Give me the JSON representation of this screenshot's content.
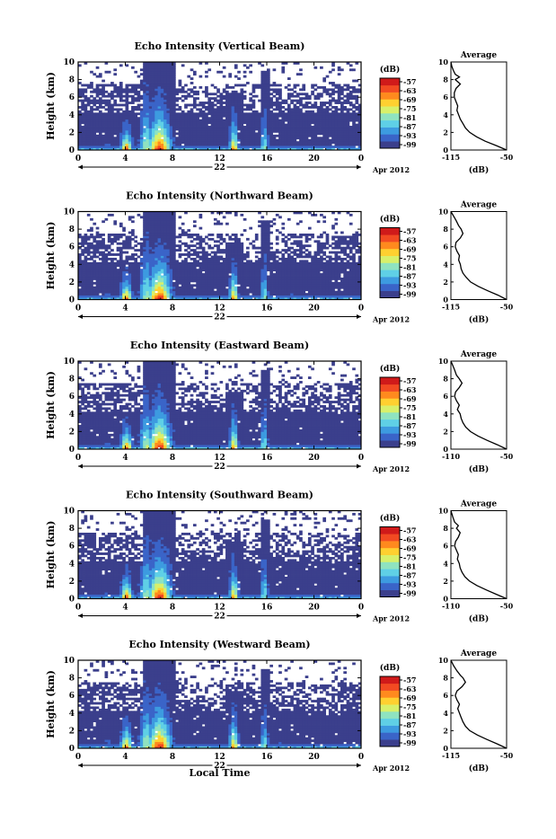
{
  "colors": {
    "background": "#ffffff",
    "colormap": [
      "#3b3f8c",
      "#3a64c8",
      "#3d9be0",
      "#5fd0e6",
      "#8fe3c0",
      "#d8f06a",
      "#ffd030",
      "#ff8a1e",
      "#f24a22",
      "#d01a1a"
    ],
    "low": "#3b3f8c"
  },
  "shared": {
    "y_label": "Height (km)",
    "x_label": "Local Time",
    "date_day": "22",
    "date_suffix": "Apr 2012",
    "cbar_unit": "(dB)",
    "avg_title": "Average",
    "avg_xlabel": "(dB)",
    "x_ticks": [
      "0",
      "4",
      "8",
      "12",
      "16",
      "20",
      "0"
    ],
    "y_ticks": [
      "0",
      "2",
      "4",
      "6",
      "8",
      "10"
    ]
  },
  "panels": [
    {
      "title": "Echo Intensity (Vertical Beam)",
      "cbar_ticks": [
        "-57",
        "-63",
        "-69",
        "-75",
        "-81",
        "-87",
        "-93",
        "-99"
      ],
      "avg_xticks": [
        "-115",
        "-50"
      ]
    },
    {
      "title": "Echo Intensity (Northward Beam)",
      "cbar_ticks": [
        "-57",
        "-63",
        "-69",
        "-75",
        "-81",
        "-87",
        "-93",
        "-99"
      ],
      "avg_xticks": [
        "-115",
        "-50"
      ]
    },
    {
      "title": "Echo Intensity (Eastward Beam)",
      "cbar_ticks": [
        "-57",
        "-63",
        "-69",
        "-75",
        "-81",
        "-87",
        "-93",
        "-99"
      ],
      "avg_xticks": [
        "-110",
        "-50"
      ]
    },
    {
      "title": "Echo Intensity (Southward Beam)",
      "cbar_ticks": [
        "-57",
        "-63",
        "-69",
        "-75",
        "-81",
        "-87",
        "-93",
        "-99"
      ],
      "avg_xticks": [
        "-110",
        "-50"
      ]
    },
    {
      "title": "Echo Intensity (Westward Beam)",
      "cbar_ticks": [
        "-57",
        "-63",
        "-69",
        "-75",
        "-81",
        "-87",
        "-93",
        "-99"
      ],
      "avg_xticks": [
        "-115",
        "-50"
      ]
    }
  ],
  "chart_data": {
    "type": "heatmap",
    "title": "Echo Intensity",
    "xlabel": "Local Time",
    "ylabel": "Height (km)",
    "xlim": [
      0,
      24
    ],
    "ylim": [
      0,
      10
    ],
    "colorbar": {
      "label": "(dB)",
      "range": [
        -99,
        -57
      ],
      "ticks": [
        -57,
        -63,
        -69,
        -75,
        -81,
        -87,
        -93,
        -99
      ]
    },
    "beams": [
      "Vertical",
      "Northward",
      "Eastward",
      "Southward",
      "Westward"
    ],
    "features": [
      {
        "name": "echo top",
        "x_start": 0,
        "x_end": 24,
        "height_km": 4.5
      },
      {
        "name": "strong echo",
        "x_center": 4.1,
        "top_km": 4
      },
      {
        "name": "strong echo",
        "x_center": 6.9,
        "top_km": 10
      },
      {
        "name": "strong echo",
        "x_center": 13.2,
        "top_km": 6.5
      },
      {
        "name": "strong echo",
        "x_center": 15.8,
        "top_km": 9
      }
    ],
    "average_profiles": [
      {
        "beam": "Vertical",
        "xlim": [
          -115,
          -50
        ],
        "points": [
          [
            -50,
            0
          ],
          [
            -62,
            0.5
          ],
          [
            -75,
            1
          ],
          [
            -85,
            1.5
          ],
          [
            -93,
            2
          ],
          [
            -98,
            2.5
          ],
          [
            -101,
            3
          ],
          [
            -104,
            3.5
          ],
          [
            -106,
            4
          ],
          [
            -108,
            4.5
          ],
          [
            -107,
            5
          ],
          [
            -109,
            5.5
          ],
          [
            -111,
            6
          ],
          [
            -111,
            6.5
          ],
          [
            -109,
            7
          ],
          [
            -104,
            7.5
          ],
          [
            -110,
            8
          ],
          [
            -105,
            8.3
          ],
          [
            -110,
            8.6
          ],
          [
            -112,
            9
          ],
          [
            -114,
            9.5
          ],
          [
            -115,
            10
          ]
        ]
      },
      {
        "beam": "Northward",
        "xlim": [
          -115,
          -50
        ],
        "points": [
          [
            -50,
            0
          ],
          [
            -60,
            0.5
          ],
          [
            -72,
            1
          ],
          [
            -83,
            1.5
          ],
          [
            -92,
            2
          ],
          [
            -97,
            2.5
          ],
          [
            -101,
            3
          ],
          [
            -103,
            3.5
          ],
          [
            -104,
            4
          ],
          [
            -106,
            4.5
          ],
          [
            -105,
            5
          ],
          [
            -108,
            5.5
          ],
          [
            -110,
            6
          ],
          [
            -109,
            6.5
          ],
          [
            -104,
            7
          ],
          [
            -101,
            7.5
          ],
          [
            -103,
            8
          ],
          [
            -106,
            8.4
          ],
          [
            -109,
            9
          ],
          [
            -112,
            9.5
          ],
          [
            -115,
            10
          ]
        ]
      },
      {
        "beam": "Eastward",
        "xlim": [
          -110,
          -50
        ],
        "points": [
          [
            -50,
            0
          ],
          [
            -60,
            0.5
          ],
          [
            -71,
            1
          ],
          [
            -81,
            1.5
          ],
          [
            -89,
            2
          ],
          [
            -94,
            2.5
          ],
          [
            -97,
            3
          ],
          [
            -99,
            3.5
          ],
          [
            -100,
            4
          ],
          [
            -103,
            4.5
          ],
          [
            -101,
            5
          ],
          [
            -104,
            5.5
          ],
          [
            -106,
            6
          ],
          [
            -105,
            6.5
          ],
          [
            -101,
            7
          ],
          [
            -98,
            7.5
          ],
          [
            -101,
            8
          ],
          [
            -104,
            8.4
          ],
          [
            -106,
            9
          ],
          [
            -108,
            9.5
          ],
          [
            -110,
            10
          ]
        ]
      },
      {
        "beam": "Southward",
        "xlim": [
          -110,
          -50
        ],
        "points": [
          [
            -50,
            0
          ],
          [
            -61,
            0.5
          ],
          [
            -72,
            1
          ],
          [
            -82,
            1.5
          ],
          [
            -90,
            2
          ],
          [
            -95,
            2.5
          ],
          [
            -98,
            3
          ],
          [
            -100,
            3.5
          ],
          [
            -101,
            4
          ],
          [
            -103,
            4.5
          ],
          [
            -102,
            5
          ],
          [
            -104,
            5.5
          ],
          [
            -106,
            6
          ],
          [
            -105,
            6.5
          ],
          [
            -102,
            7
          ],
          [
            -100,
            7.5
          ],
          [
            -104,
            8
          ],
          [
            -102,
            8.3
          ],
          [
            -106,
            8.7
          ],
          [
            -108,
            9.3
          ],
          [
            -110,
            10
          ]
        ]
      },
      {
        "beam": "Westward",
        "xlim": [
          -115,
          -50
        ],
        "points": [
          [
            -50,
            0
          ],
          [
            -61,
            0.5
          ],
          [
            -73,
            1
          ],
          [
            -84,
            1.5
          ],
          [
            -93,
            2
          ],
          [
            -98,
            2.5
          ],
          [
            -101,
            3
          ],
          [
            -103,
            3.5
          ],
          [
            -105,
            4
          ],
          [
            -107,
            4.5
          ],
          [
            -105,
            5
          ],
          [
            -108,
            5.5
          ],
          [
            -110,
            6
          ],
          [
            -108,
            6.5
          ],
          [
            -102,
            7
          ],
          [
            -98,
            7.5
          ],
          [
            -101,
            8
          ],
          [
            -104,
            8.3
          ],
          [
            -108,
            8.8
          ],
          [
            -112,
            9.4
          ],
          [
            -115,
            10
          ]
        ]
      }
    ]
  }
}
